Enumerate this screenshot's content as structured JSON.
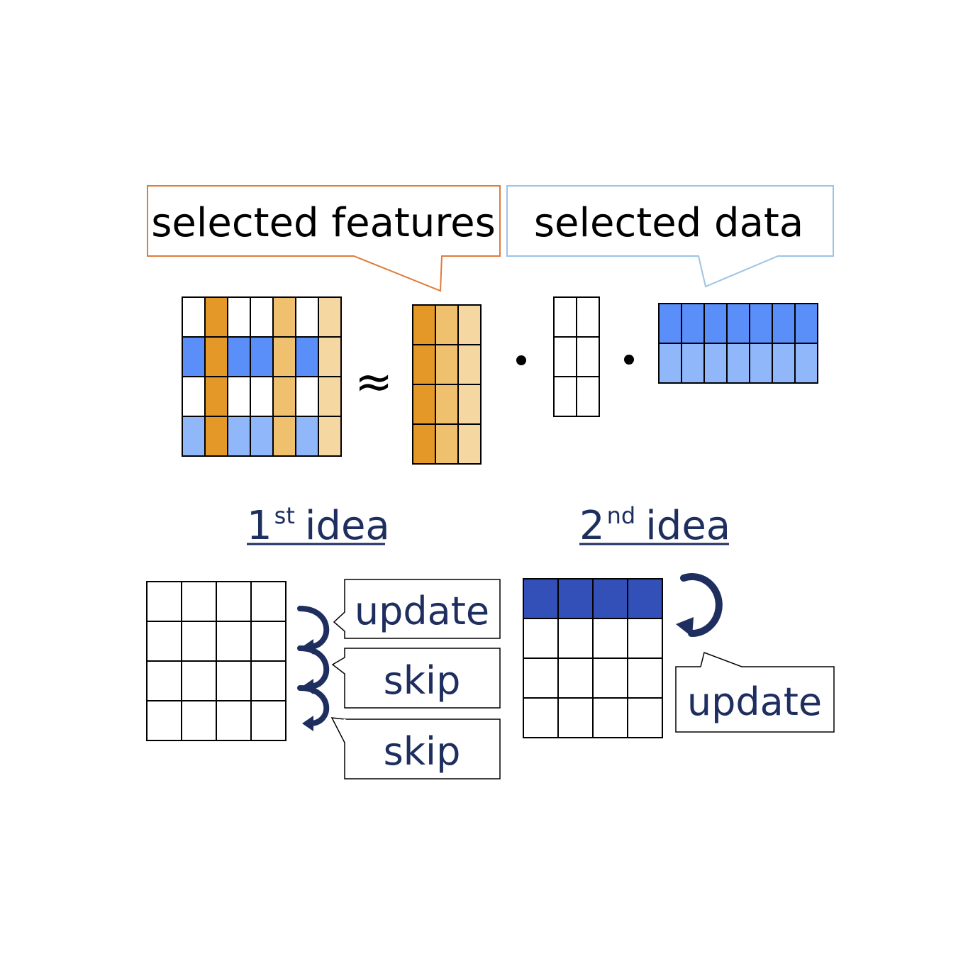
{
  "colors": {
    "white": "#ffffff",
    "orange_dark": "#e39828",
    "orange_mid": "#efc16e",
    "orange_light": "#f5d8a1",
    "blue_mid": "#5a8ef9",
    "blue_light": "#8fb7fa",
    "blue_dark": "#3350b8",
    "navy": "#1e2e5f",
    "grid_line": "#000000",
    "callout_orange": "#e07b3a",
    "callout_blue": "#9dc3e6"
  },
  "callouts": {
    "features_label": "selected features",
    "data_label": "selected data"
  },
  "equation": {
    "approx_symbol": "≈",
    "dot_symbol": "·"
  },
  "matrices": {
    "X": [
      [
        "white",
        "orange_dark",
        "white",
        "white",
        "orange_mid",
        "white",
        "orange_light"
      ],
      [
        "blue_mid",
        "orange_dark",
        "blue_mid",
        "blue_mid",
        "orange_mid",
        "blue_mid",
        "orange_light"
      ],
      [
        "white",
        "orange_dark",
        "white",
        "white",
        "orange_mid",
        "white",
        "orange_light"
      ],
      [
        "blue_light",
        "orange_dark",
        "blue_light",
        "blue_light",
        "orange_mid",
        "blue_light",
        "orange_light"
      ]
    ],
    "C": [
      [
        "orange_dark",
        "orange_mid",
        "orange_light"
      ],
      [
        "orange_dark",
        "orange_mid",
        "orange_light"
      ],
      [
        "orange_dark",
        "orange_mid",
        "orange_light"
      ],
      [
        "orange_dark",
        "orange_mid",
        "orange_light"
      ]
    ],
    "U": [
      [
        "white",
        "white"
      ],
      [
        "white",
        "white"
      ],
      [
        "white",
        "white"
      ]
    ],
    "R": [
      [
        "blue_mid",
        "blue_mid",
        "blue_mid",
        "blue_mid",
        "blue_mid",
        "blue_mid",
        "blue_mid"
      ],
      [
        "blue_light",
        "blue_light",
        "blue_light",
        "blue_light",
        "blue_light",
        "blue_light",
        "blue_light"
      ]
    ]
  },
  "idea1": {
    "num": "1",
    "sup": "st",
    "word": "idea",
    "grid_rows": 4,
    "grid_cols": 4,
    "labels": [
      "update",
      "skip",
      "skip"
    ]
  },
  "idea2": {
    "num": "2",
    "sup": "nd",
    "word": "idea",
    "grid_rows": 4,
    "grid_cols": 4,
    "highlight_row_color": "blue_dark",
    "label": "update"
  }
}
